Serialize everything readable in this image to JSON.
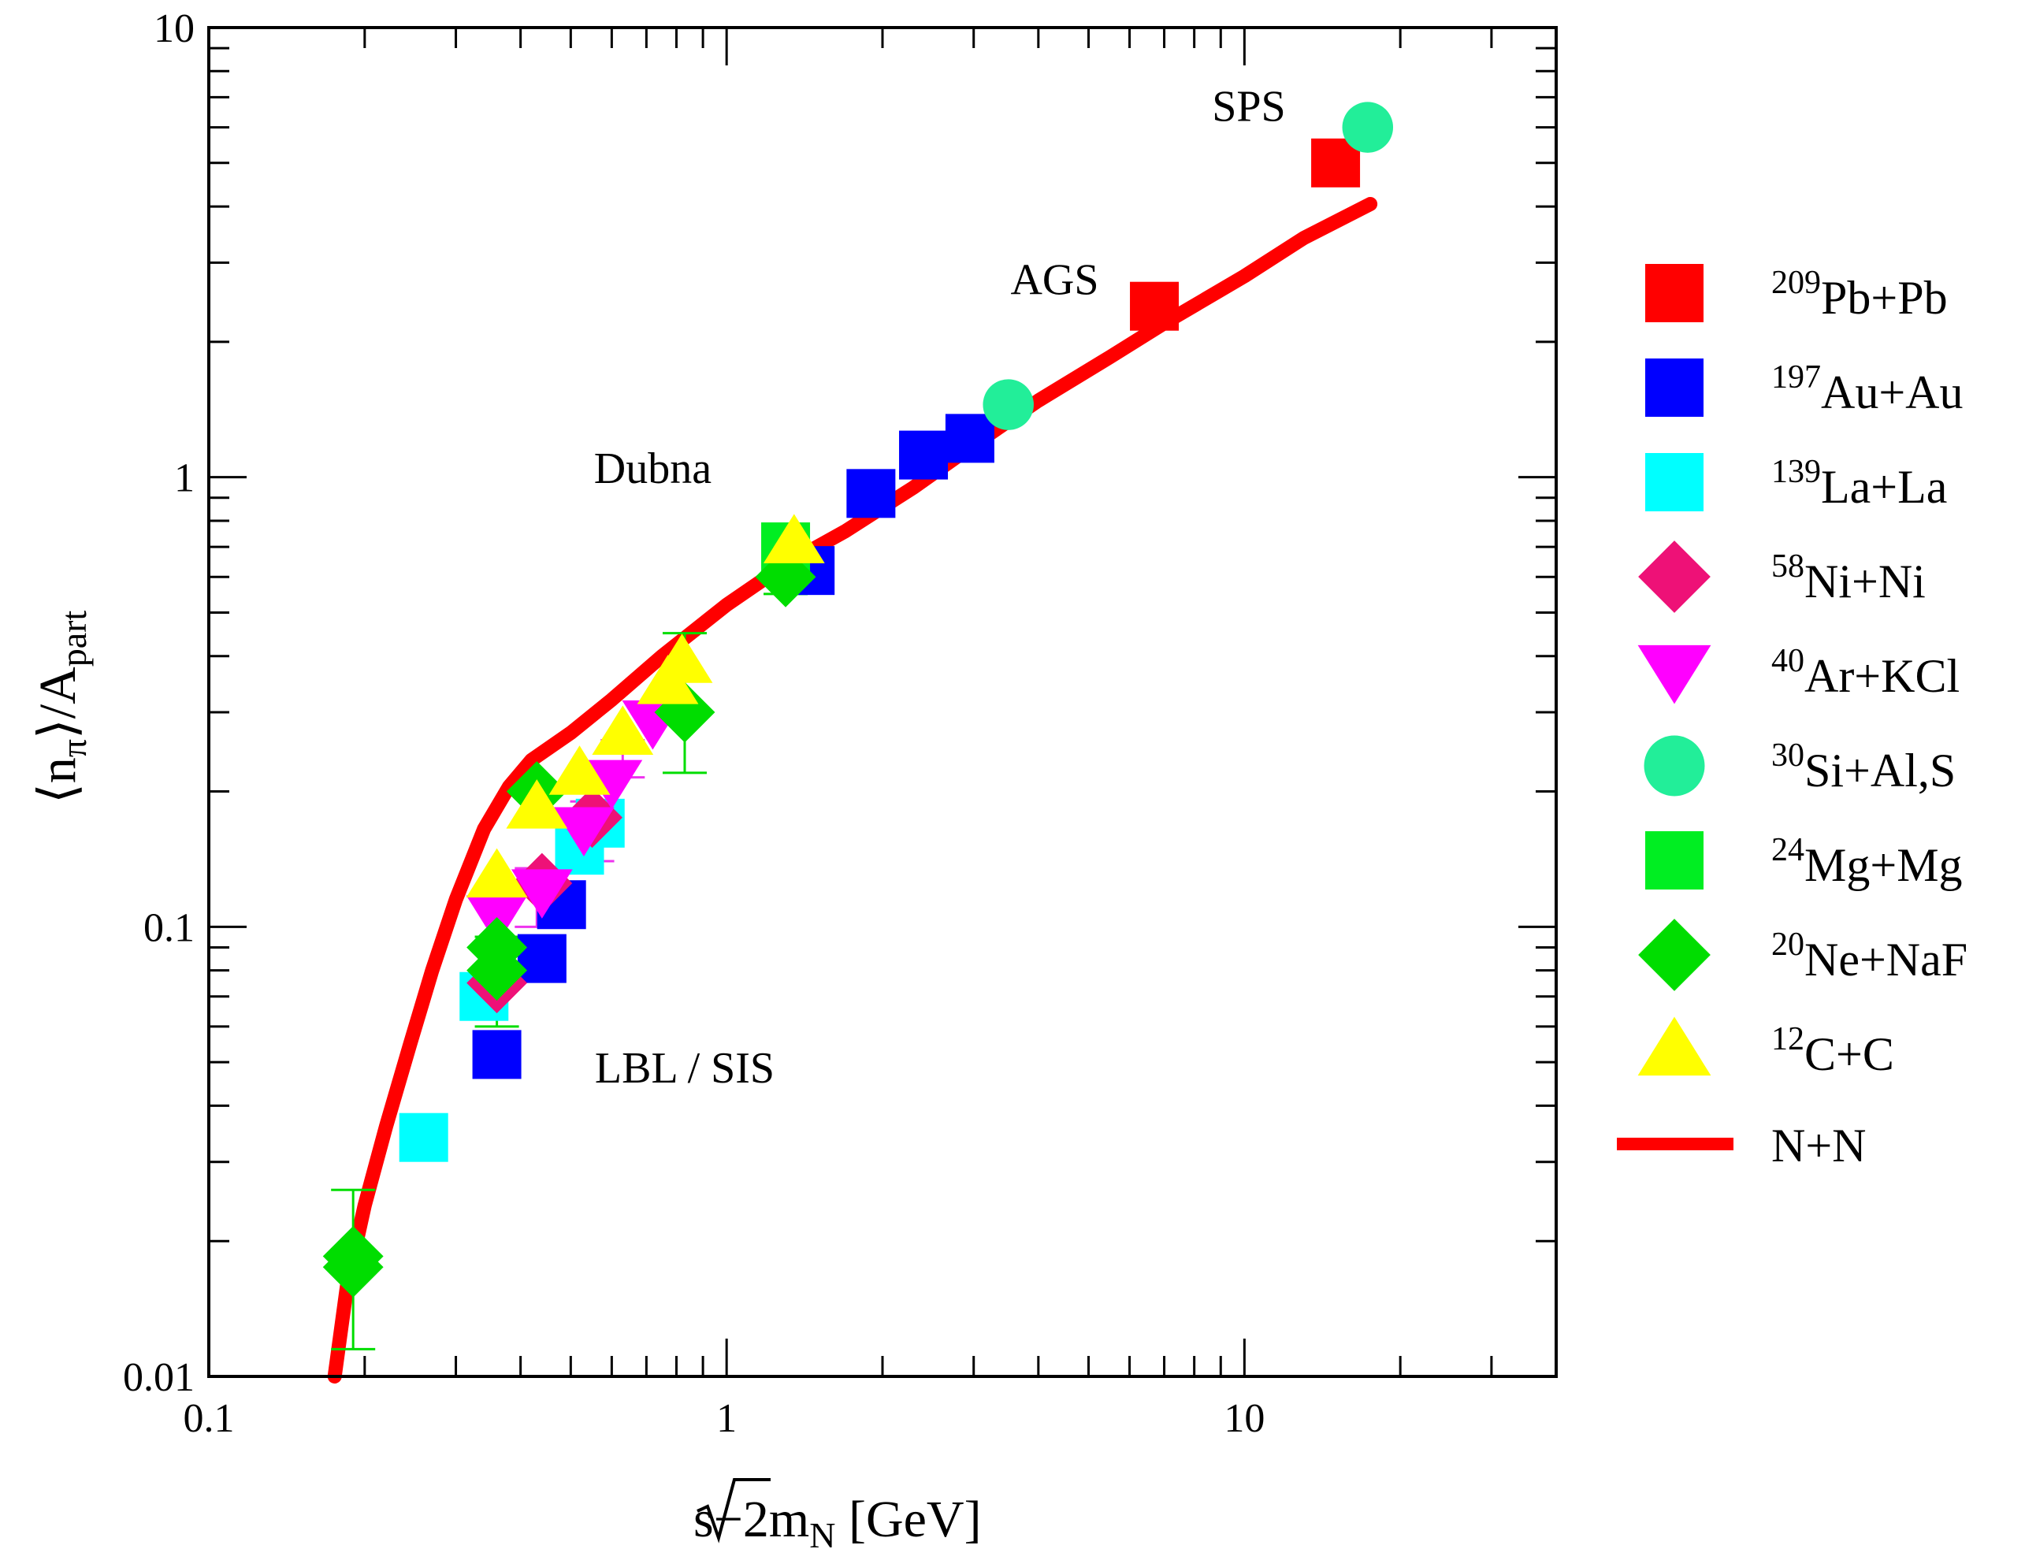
{
  "chart_data": {
    "type": "scatter",
    "title": "",
    "xlabel": {
      "root": "s",
      "minus": "−2m",
      "sub": "N",
      "unit": " [GeV]"
    },
    "ylabel": {
      "open": "⟨n",
      "sub_pi": "π",
      "mid": "⟩/A",
      "sub_part": "part"
    },
    "xscale": "log",
    "yscale": "log",
    "xlim": [
      0.1,
      40
    ],
    "ylim": [
      0.01,
      10
    ],
    "x_tick_labels": [
      {
        "value": 0.1,
        "label": "0.1"
      },
      {
        "value": 1,
        "label": "1"
      },
      {
        "value": 10,
        "label": "10"
      }
    ],
    "y_tick_labels": [
      {
        "value": 0.01,
        "label": "0.01"
      },
      {
        "value": 0.1,
        "label": "0.1"
      },
      {
        "value": 1,
        "label": "1"
      },
      {
        "value": 10,
        "label": "10"
      }
    ],
    "annotations": [
      {
        "text": "SPS",
        "x": 10.2,
        "y": 6.2
      },
      {
        "text": "AGS",
        "x": 4.3,
        "y": 2.55
      },
      {
        "text": "Dubna",
        "x": 0.72,
        "y": 0.97
      },
      {
        "text": "LBL / SIS",
        "x": 0.83,
        "y": 0.045
      }
    ],
    "legend_position": "right",
    "series": [
      {
        "name": "Pb+Pb",
        "mass": "209",
        "rest": "Pb+Pb",
        "marker": "square",
        "color": "#ff0000",
        "points": [
          {
            "x": 15.0,
            "y": 5.0
          },
          {
            "x": 6.7,
            "y": 2.4
          }
        ]
      },
      {
        "name": "Au+Au",
        "mass": "197",
        "rest": "Au+Au",
        "marker": "square",
        "color": "#0000ff",
        "points": [
          {
            "x": 0.36,
            "y": 0.052
          },
          {
            "x": 0.44,
            "y": 0.085
          },
          {
            "x": 0.48,
            "y": 0.112
          },
          {
            "x": 1.45,
            "y": 0.62
          },
          {
            "x": 1.9,
            "y": 0.92
          },
          {
            "x": 2.4,
            "y": 1.12
          },
          {
            "x": 2.95,
            "y": 1.22
          }
        ]
      },
      {
        "name": "La+La",
        "mass": "139",
        "rest": "La+La",
        "marker": "square",
        "color": "#00ffff",
        "points": [
          {
            "x": 0.26,
            "y": 0.034
          },
          {
            "x": 0.34,
            "y": 0.07
          },
          {
            "x": 0.52,
            "y": 0.148
          },
          {
            "x": 0.57,
            "y": 0.17
          }
        ]
      },
      {
        "name": "Ni+Ni",
        "mass": "58",
        "rest": "Ni+Ni",
        "marker": "diamond",
        "color": "#ee1177",
        "points": [
          {
            "x": 0.36,
            "y": 0.075
          },
          {
            "x": 0.44,
            "y": 0.125
          },
          {
            "x": 0.55,
            "y": 0.175
          }
        ]
      },
      {
        "name": "Ar+KCl",
        "mass": "40",
        "rest": "Ar+KCl",
        "marker": "triangle-down",
        "color": "#ff00ff",
        "points": [
          {
            "x": 0.36,
            "y": 0.105
          },
          {
            "x": 0.44,
            "y": 0.12
          },
          {
            "x": 0.53,
            "y": 0.165
          },
          {
            "x": 0.6,
            "y": 0.21
          },
          {
            "x": 0.72,
            "y": 0.285
          }
        ]
      },
      {
        "name": "Si+Al,S",
        "mass": "30",
        "rest": "Si+Al,S",
        "marker": "circle",
        "color": "#22ee99",
        "points": [
          {
            "x": 17.3,
            "y": 6.0
          },
          {
            "x": 3.5,
            "y": 1.45
          }
        ]
      },
      {
        "name": "Mg+Mg",
        "mass": "24",
        "rest": "Mg+Mg",
        "marker": "square",
        "color": "#00ee22",
        "points": [
          {
            "x": 1.3,
            "y": 0.7
          }
        ]
      },
      {
        "name": "Ne+NaF",
        "mass": "20",
        "rest": "Ne+NaF",
        "marker": "diamond",
        "color": "#00dd00",
        "points": [
          {
            "x": 0.19,
            "y": 0.0185
          },
          {
            "x": 0.19,
            "y": 0.0175
          },
          {
            "x": 0.36,
            "y": 0.08
          },
          {
            "x": 0.36,
            "y": 0.09
          },
          {
            "x": 0.43,
            "y": 0.2
          },
          {
            "x": 0.83,
            "y": 0.3
          },
          {
            "x": 1.3,
            "y": 0.6
          }
        ]
      },
      {
        "name": "C+C",
        "mass": "12",
        "rest": "C+C",
        "marker": "triangle-up",
        "color": "#ffff00",
        "points": [
          {
            "x": 0.36,
            "y": 0.13
          },
          {
            "x": 0.43,
            "y": 0.185
          },
          {
            "x": 0.52,
            "y": 0.22
          },
          {
            "x": 0.63,
            "y": 0.27
          },
          {
            "x": 0.77,
            "y": 0.35
          },
          {
            "x": 0.82,
            "y": 0.39
          },
          {
            "x": 1.35,
            "y": 0.72
          }
        ]
      }
    ],
    "line": {
      "name": "N+N",
      "color": "#ff0000",
      "points": [
        {
          "x": 0.175,
          "y": 0.01
        },
        {
          "x": 0.185,
          "y": 0.016
        },
        {
          "x": 0.2,
          "y": 0.024
        },
        {
          "x": 0.22,
          "y": 0.036
        },
        {
          "x": 0.245,
          "y": 0.055
        },
        {
          "x": 0.27,
          "y": 0.08
        },
        {
          "x": 0.3,
          "y": 0.115
        },
        {
          "x": 0.34,
          "y": 0.165
        },
        {
          "x": 0.38,
          "y": 0.205
        },
        {
          "x": 0.42,
          "y": 0.235
        },
        {
          "x": 0.5,
          "y": 0.27
        },
        {
          "x": 0.6,
          "y": 0.32
        },
        {
          "x": 0.75,
          "y": 0.4
        },
        {
          "x": 1.0,
          "y": 0.52
        },
        {
          "x": 1.3,
          "y": 0.64
        },
        {
          "x": 1.7,
          "y": 0.76
        },
        {
          "x": 2.3,
          "y": 0.95
        },
        {
          "x": 3.0,
          "y": 1.18
        },
        {
          "x": 4.0,
          "y": 1.48
        },
        {
          "x": 5.5,
          "y": 1.85
        },
        {
          "x": 7.0,
          "y": 2.2
        },
        {
          "x": 10.0,
          "y": 2.8
        },
        {
          "x": 13.0,
          "y": 3.4
        },
        {
          "x": 17.5,
          "y": 4.05
        }
      ]
    },
    "error_bars": [
      {
        "x": 0.19,
        "y_low": 0.0115,
        "y_high": 0.026,
        "color": "#00dd00"
      },
      {
        "x": 0.36,
        "y_low": 0.06,
        "y_high": 0.095,
        "color": "#00dd00"
      },
      {
        "x": 0.43,
        "y_low": 0.1,
        "y_high": 0.135,
        "color": "#ee33ee"
      },
      {
        "x": 0.55,
        "y_low": 0.14,
        "y_high": 0.19,
        "color": "#ee33ee"
      },
      {
        "x": 0.63,
        "y_low": 0.215,
        "y_high": 0.26,
        "color": "#ee33ee"
      },
      {
        "x": 0.83,
        "y_low": 0.22,
        "y_high": 0.45,
        "color": "#00dd00"
      },
      {
        "x": 1.3,
        "y_low": 0.55,
        "y_high": 0.75,
        "color": "#00dd00"
      }
    ]
  }
}
